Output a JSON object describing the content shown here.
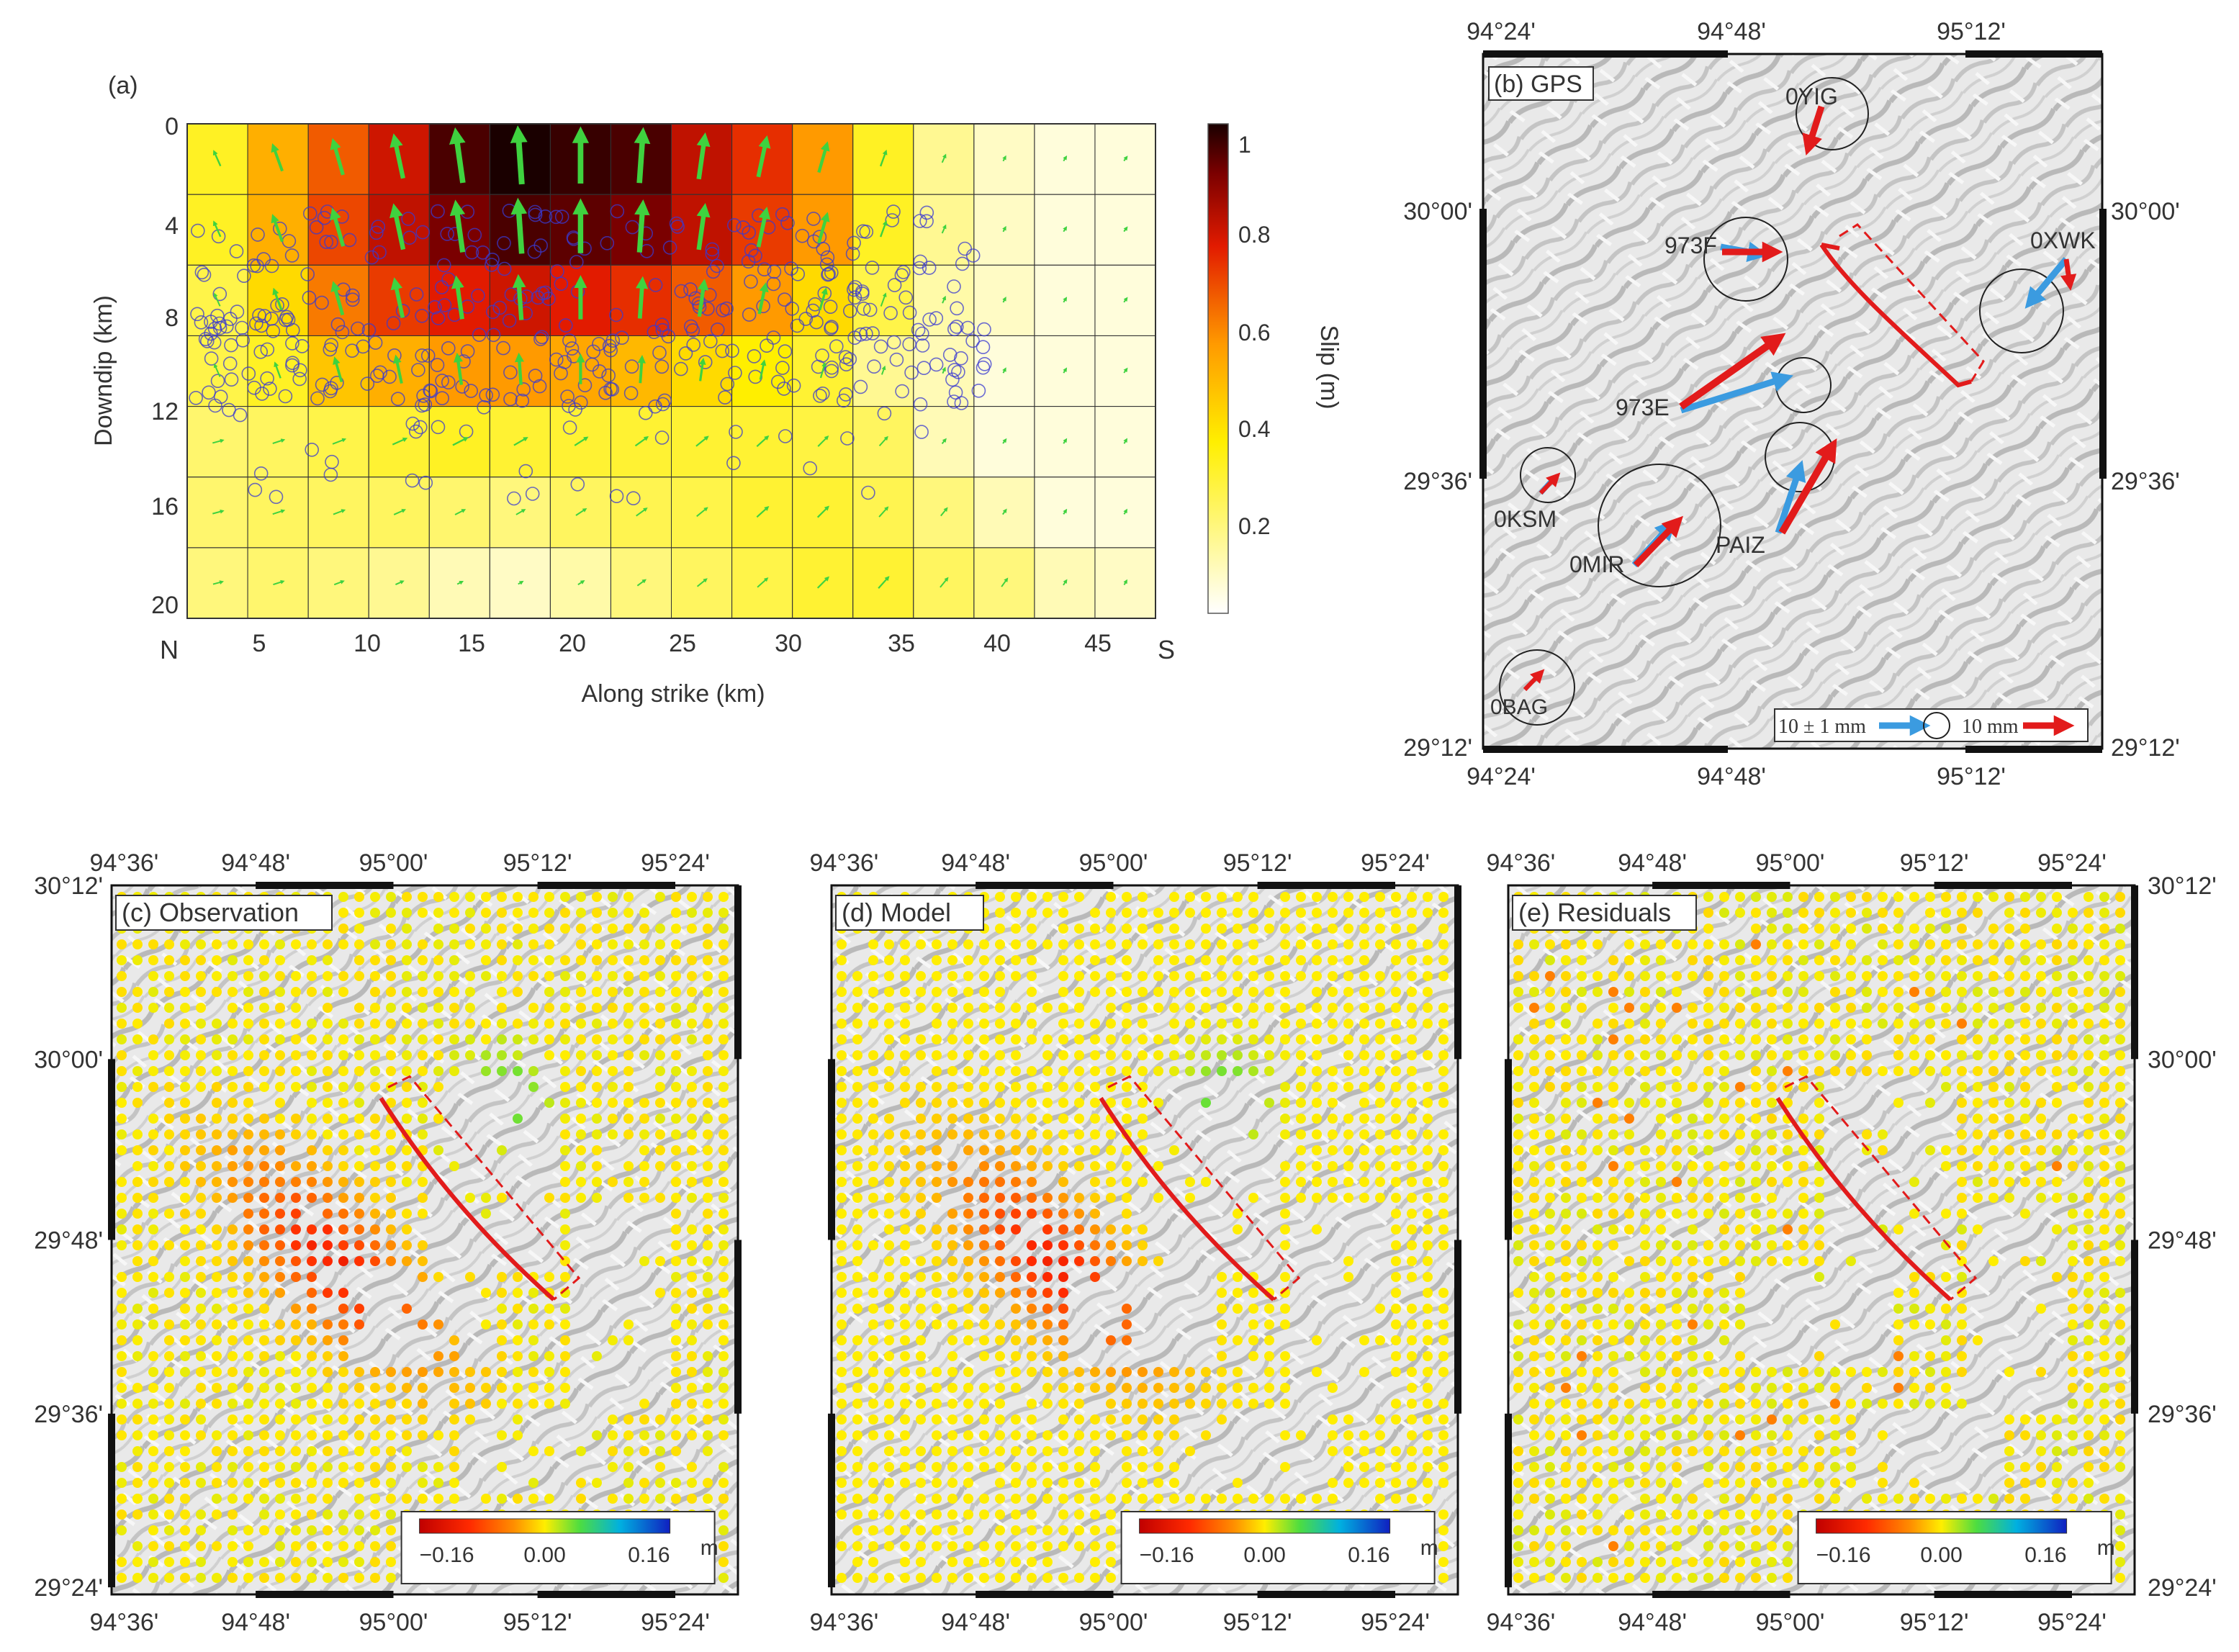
{
  "panel_a": {
    "label": "(a)",
    "yticks": [
      "0",
      "4",
      "8",
      "12",
      "16",
      "20"
    ],
    "xticks": [
      "5",
      "10",
      "15",
      "20",
      "25",
      "30",
      "35",
      "40",
      "45"
    ],
    "left_end": "N",
    "right_end": "S",
    "ylabel": "Downdip (km)",
    "xlabel": "Along strike (km)",
    "colorbar_label": "Slip (m)",
    "colorbar_ticks": [
      "1",
      "0.8",
      "0.6",
      "0.4",
      "0.2"
    ],
    "slip_grid": [
      [
        0.3,
        0.5,
        0.65,
        0.78,
        0.95,
        1.0,
        0.97,
        0.95,
        0.8,
        0.72,
        0.55,
        0.3,
        0.15,
        0.08,
        0.05,
        0.05
      ],
      [
        0.3,
        0.5,
        0.68,
        0.8,
        0.9,
        0.95,
        0.93,
        0.9,
        0.8,
        0.7,
        0.55,
        0.3,
        0.15,
        0.08,
        0.05,
        0.05
      ],
      [
        0.25,
        0.4,
        0.6,
        0.7,
        0.75,
        0.78,
        0.75,
        0.72,
        0.65,
        0.55,
        0.4,
        0.25,
        0.12,
        0.08,
        0.05,
        0.05
      ],
      [
        0.25,
        0.3,
        0.45,
        0.5,
        0.55,
        0.55,
        0.52,
        0.48,
        0.4,
        0.35,
        0.28,
        0.15,
        0.1,
        0.05,
        0.05,
        0.05
      ],
      [
        0.2,
        0.22,
        0.25,
        0.28,
        0.3,
        0.28,
        0.28,
        0.28,
        0.28,
        0.28,
        0.26,
        0.22,
        0.1,
        0.05,
        0.05,
        0.05
      ],
      [
        0.2,
        0.22,
        0.22,
        0.22,
        0.2,
        0.18,
        0.22,
        0.24,
        0.25,
        0.28,
        0.28,
        0.24,
        0.18,
        0.1,
        0.05,
        0.05
      ],
      [
        0.18,
        0.2,
        0.18,
        0.15,
        0.1,
        0.08,
        0.12,
        0.18,
        0.22,
        0.25,
        0.28,
        0.28,
        0.22,
        0.18,
        0.1,
        0.08
      ]
    ]
  },
  "panel_b": {
    "label": "(b) GPS",
    "top_ticks": [
      "94°24'",
      "94°48'",
      "95°12'"
    ],
    "bottom_ticks": [
      "94°24'",
      "94°48'",
      "95°12'"
    ],
    "left_ticks": [
      "30°00'",
      "29°36'",
      "29°12'"
    ],
    "right_ticks": [
      "30°00'",
      "29°36'",
      "29°12'"
    ],
    "stations": [
      "0YIG",
      "973F",
      "0XWK",
      "973E",
      "0KSM",
      "PAIZ",
      "0MIR",
      "0BAG"
    ],
    "legend_obs": "10 ± 1 mm",
    "legend_model": "10 mm",
    "obs_color": "#3b9be0",
    "model_color": "#e21b1b"
  },
  "panels_cde": {
    "top_ticks": [
      "94°36'",
      "94°48'",
      "95°00'",
      "95°12'",
      "95°24'"
    ],
    "bottom_ticks": [
      "94°36'",
      "94°48'",
      "95°00'",
      "95°12'",
      "95°24'"
    ],
    "lat_ticks": [
      "30°12'",
      "30°00'",
      "29°48'",
      "29°36'",
      "29°24'"
    ],
    "labels": [
      "(c) Observation",
      "(d) Model",
      "(e) Residuals"
    ],
    "colorbar_ticks": [
      "−0.16",
      "0.00",
      "0.16"
    ],
    "colorbar_unit": "m"
  }
}
